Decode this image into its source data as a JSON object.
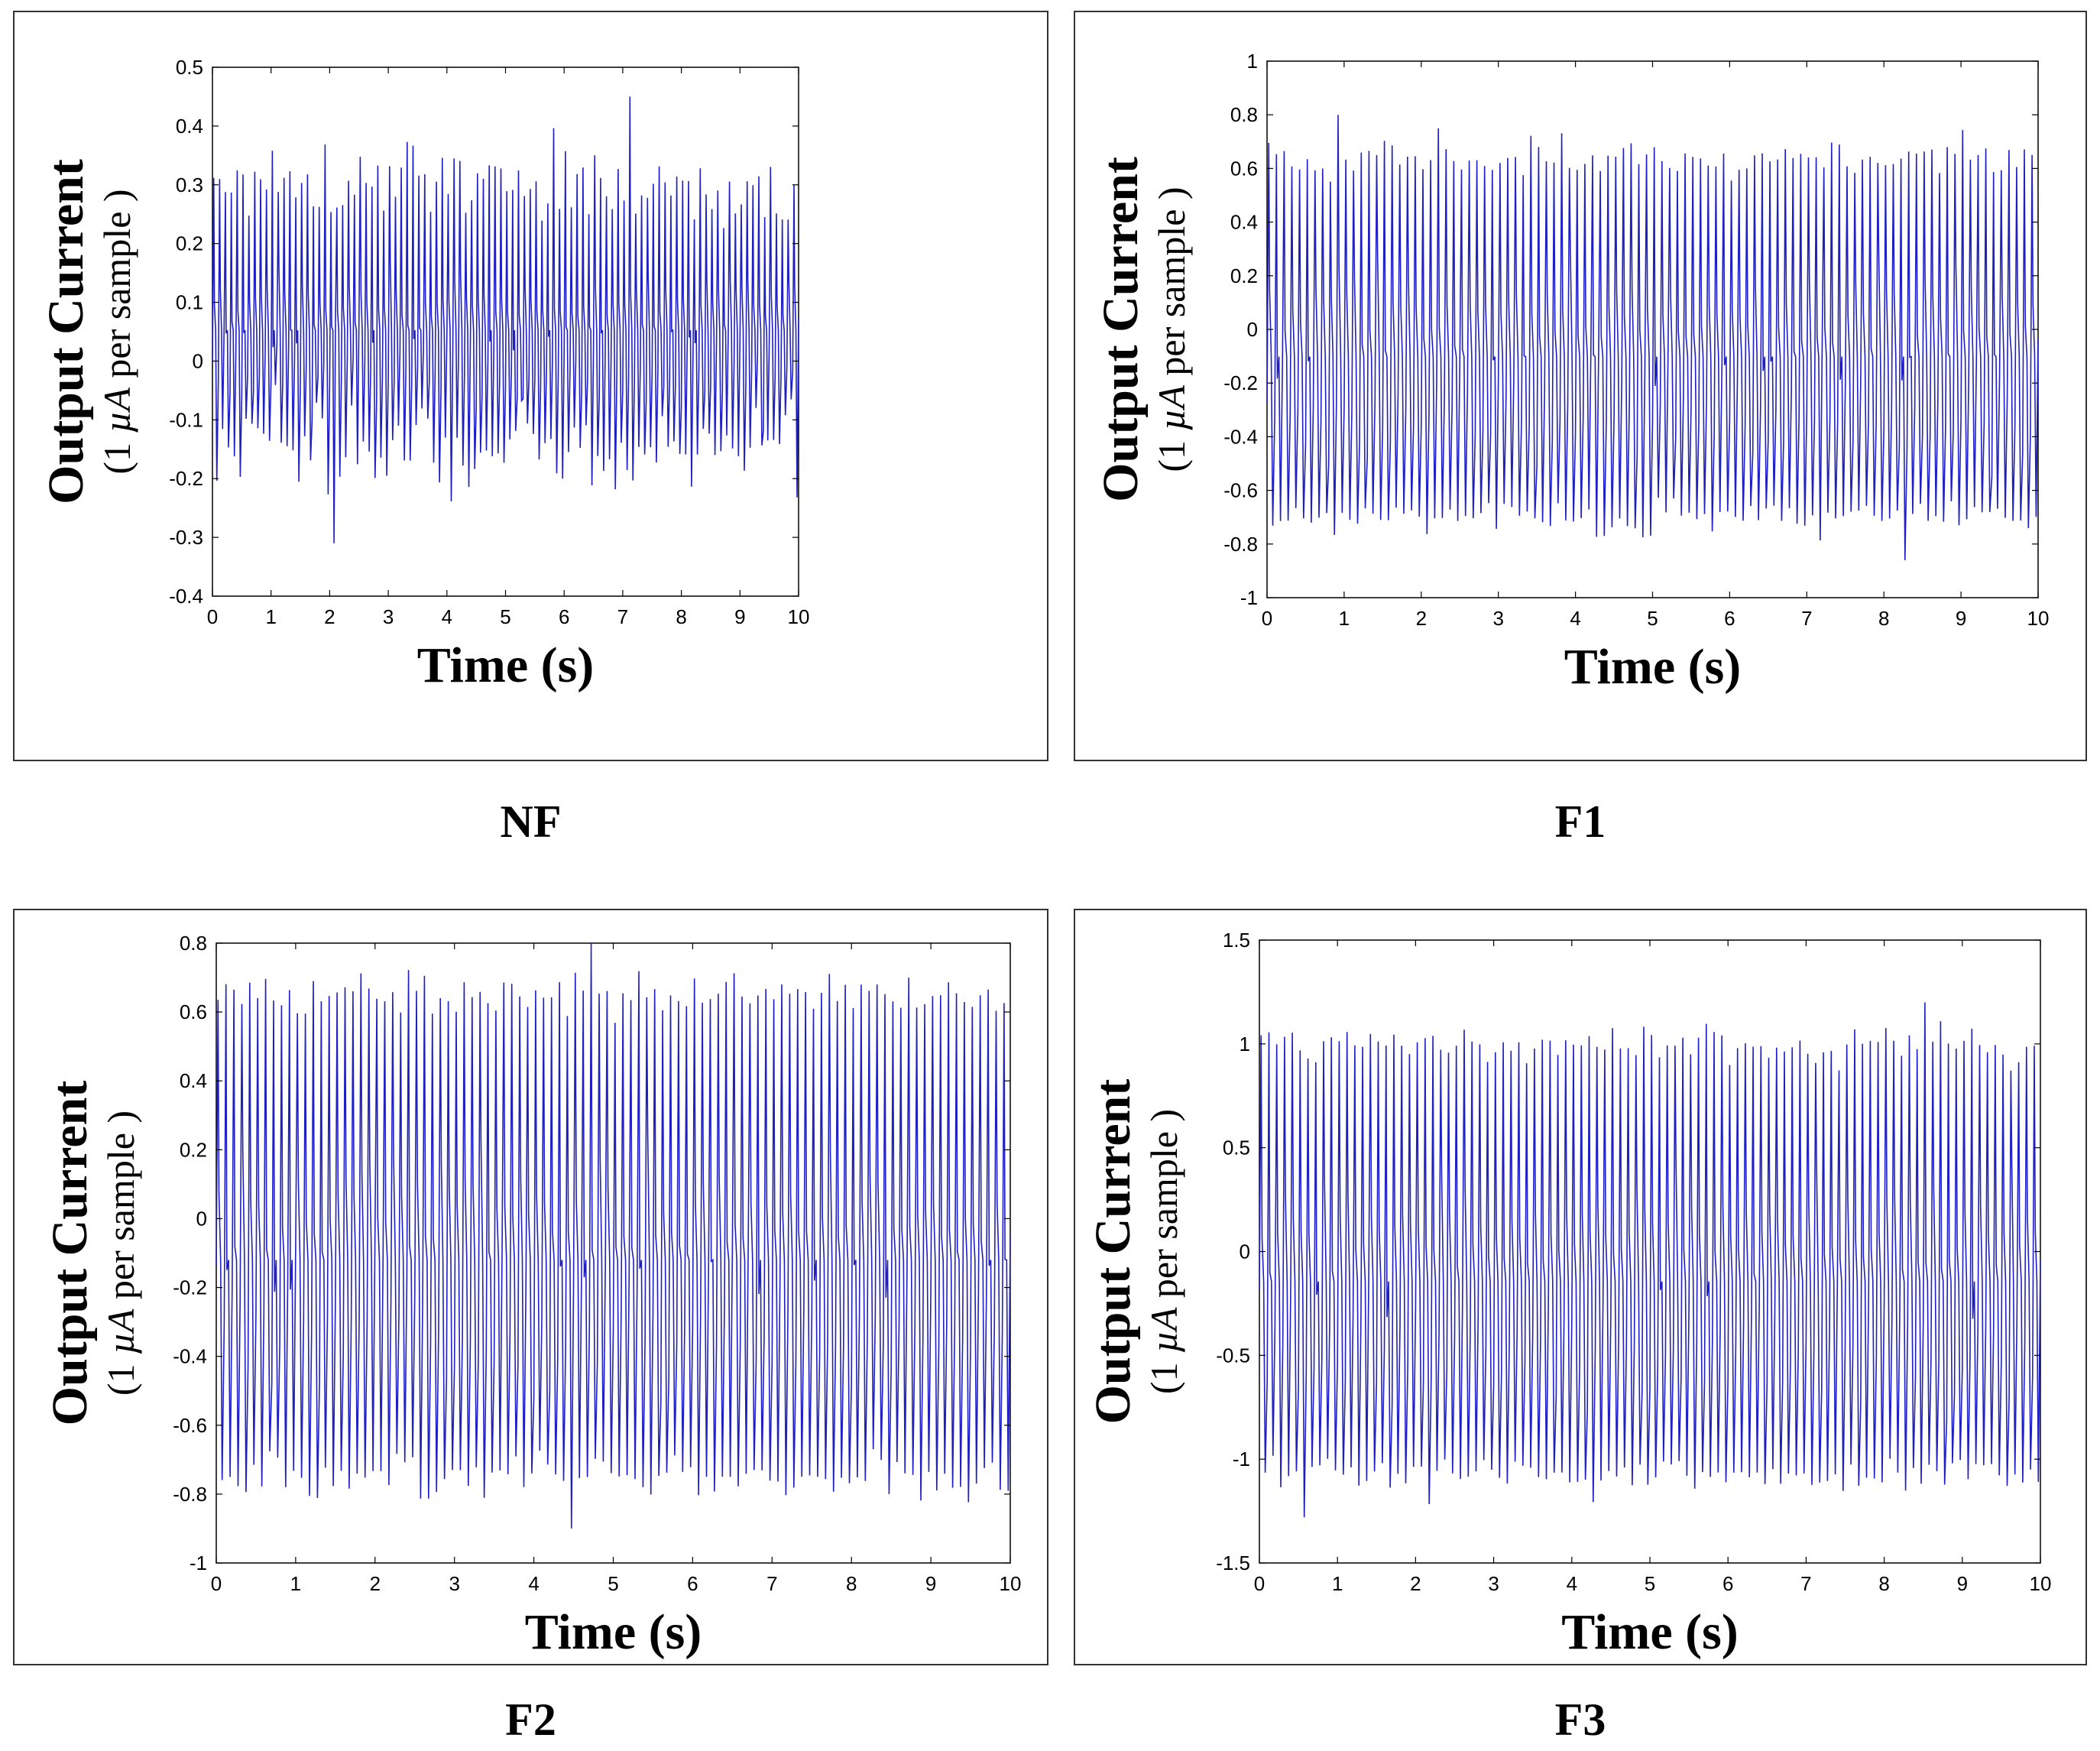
{
  "chart_data": [
    {
      "type": "line",
      "caption": "NF",
      "xlabel": "Time (s)",
      "ylabel_main": "Output Current",
      "ylabel_sub_open": "(1 ",
      "ylabel_sub_unit": "µA",
      "ylabel_sub_close": " per sample )",
      "xlim": [
        0,
        10
      ],
      "ylim": [
        -0.4,
        0.5
      ],
      "x_ticks": [
        0,
        1,
        2,
        3,
        4,
        5,
        6,
        7,
        8,
        9,
        10
      ],
      "y_ticks": [
        -0.4,
        -0.3,
        -0.2,
        -0.1,
        0,
        0.1,
        0.2,
        0.3,
        0.4,
        0.5
      ],
      "x_tick_labels": [
        "0",
        "1",
        "2",
        "3",
        "4",
        "5",
        "6",
        "7",
        "8",
        "9",
        "10"
      ],
      "y_tick_labels": [
        "-0.4",
        "-0.3",
        "-0.2",
        "-0.1",
        "0",
        "0.1",
        "0.2",
        "0.3",
        "0.4",
        "0.5"
      ],
      "series": [
        {
          "name": "output current",
          "color": "#1f1fc2",
          "cycles": 100,
          "peak_mean": 0.3,
          "trough_mean": -0.15,
          "max": 0.45,
          "min": -0.31
        }
      ]
    },
    {
      "type": "line",
      "caption": "F1",
      "xlabel": "Time (s)",
      "ylabel_main": "Output Current",
      "ylabel_sub_open": "(1 ",
      "ylabel_sub_unit": "µA",
      "ylabel_sub_close": " per sample )",
      "xlim": [
        0,
        10
      ],
      "ylim": [
        -1,
        1
      ],
      "x_ticks": [
        0,
        1,
        2,
        3,
        4,
        5,
        6,
        7,
        8,
        9,
        10
      ],
      "y_ticks": [
        -1,
        -0.8,
        -0.6,
        -0.4,
        -0.2,
        0,
        0.2,
        0.4,
        0.6,
        0.8,
        1
      ],
      "x_tick_labels": [
        "0",
        "1",
        "2",
        "3",
        "4",
        "5",
        "6",
        "7",
        "8",
        "9",
        "10"
      ],
      "y_tick_labels": [
        "-1",
        "-0.8",
        "-0.6",
        "-0.4",
        "-0.2",
        "0",
        "0.2",
        "0.4",
        "0.6",
        "0.8",
        "1"
      ],
      "series": [
        {
          "name": "output current",
          "color": "#1f1fc2",
          "cycles": 100,
          "peak_mean": 0.63,
          "trough_mean": -0.7,
          "max": 0.8,
          "min": -0.86
        }
      ]
    },
    {
      "type": "line",
      "caption": "F2",
      "xlabel": "Time (s)",
      "ylabel_main": "Output Current",
      "ylabel_sub_open": "(1 ",
      "ylabel_sub_unit": "µA",
      "ylabel_sub_close": " per sample )",
      "xlim": [
        0,
        10
      ],
      "ylim": [
        -1,
        0.8
      ],
      "x_ticks": [
        0,
        1,
        2,
        3,
        4,
        5,
        6,
        7,
        8,
        9,
        10
      ],
      "y_ticks": [
        -1,
        -0.8,
        -0.6,
        -0.4,
        -0.2,
        0,
        0.2,
        0.4,
        0.6,
        0.8
      ],
      "x_tick_labels": [
        "0",
        "1",
        "2",
        "3",
        "4",
        "5",
        "6",
        "7",
        "8",
        "9",
        "10"
      ],
      "y_tick_labels": [
        "-1",
        "-0.8",
        "-0.6",
        "-0.4",
        "-0.2",
        "0",
        "0.2",
        "0.4",
        "0.6",
        "0.8"
      ],
      "series": [
        {
          "name": "output current",
          "color": "#1f1fc2",
          "cycles": 100,
          "peak_mean": 0.65,
          "trough_mean": -0.75,
          "max": 0.8,
          "min": -0.9
        }
      ]
    },
    {
      "type": "line",
      "caption": "F3",
      "xlabel": "Time (s)",
      "ylabel_main": "Output Current",
      "ylabel_sub_open": "(1 ",
      "ylabel_sub_unit": "µA",
      "ylabel_sub_close": " per sample )",
      "xlim": [
        0,
        10
      ],
      "ylim": [
        -1.5,
        1.5
      ],
      "x_ticks": [
        0,
        1,
        2,
        3,
        4,
        5,
        6,
        7,
        8,
        9,
        10
      ],
      "y_ticks": [
        -1.5,
        -1,
        -0.5,
        0,
        0.5,
        1,
        1.5
      ],
      "x_tick_labels": [
        "0",
        "1",
        "2",
        "3",
        "4",
        "5",
        "6",
        "7",
        "8",
        "9",
        "10"
      ],
      "y_tick_labels": [
        "-1.5",
        "-1",
        "-0.5",
        "0",
        "0.5",
        "1",
        "1.5"
      ],
      "series": [
        {
          "name": "output current",
          "color": "#1f1fc2",
          "cycles": 100,
          "peak_mean": 1.0,
          "trough_mean": -1.08,
          "max": 1.2,
          "min": -1.28
        }
      ]
    }
  ]
}
